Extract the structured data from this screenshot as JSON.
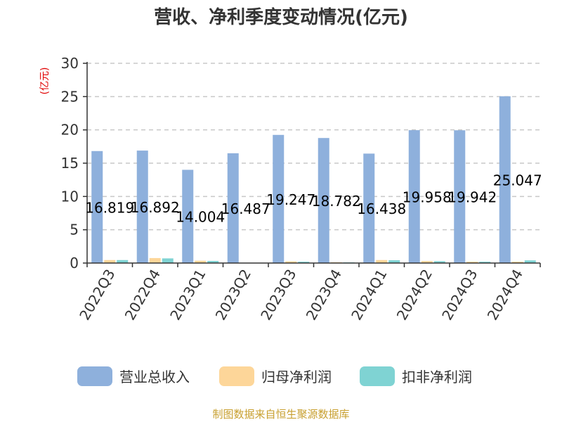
{
  "chart_data": {
    "type": "bar",
    "title": "营收、净利季度变动情况(亿元)",
    "unit_label": "(亿元)",
    "categories": [
      "2022Q3",
      "2022Q4",
      "2023Q1",
      "2023Q2",
      "2023Q3",
      "2023Q4",
      "2024Q1",
      "2024Q2",
      "2024Q3",
      "2024Q4"
    ],
    "series": [
      {
        "name": "营业总收入",
        "color": "#8eb0dc",
        "values": [
          16.819,
          16.892,
          14.004,
          16.487,
          19.247,
          18.782,
          16.438,
          19.958,
          19.942,
          25.047
        ],
        "labels": [
          "16.819",
          "16.892",
          "14.004",
          "16.487",
          "19.247",
          "18.782",
          "16.438",
          "19.958",
          "19.942",
          "25.047"
        ]
      },
      {
        "name": "归母净利润",
        "color": "#fdd699",
        "values": [
          0.45,
          0.75,
          0.35,
          0.05,
          0.25,
          0.12,
          0.45,
          0.3,
          0.2,
          0.2
        ]
      },
      {
        "name": "扣非净利润",
        "color": "#7fd3d3",
        "values": [
          0.45,
          0.7,
          0.32,
          0.03,
          0.2,
          0.1,
          0.42,
          0.28,
          0.2,
          0.4
        ]
      }
    ],
    "ylim": [
      0,
      30
    ],
    "yticks": [
      0,
      5,
      10,
      15,
      20,
      25,
      30
    ],
    "grid": true,
    "legend_position": "bottom",
    "source": "制图数据来自恒生聚源数据库"
  }
}
